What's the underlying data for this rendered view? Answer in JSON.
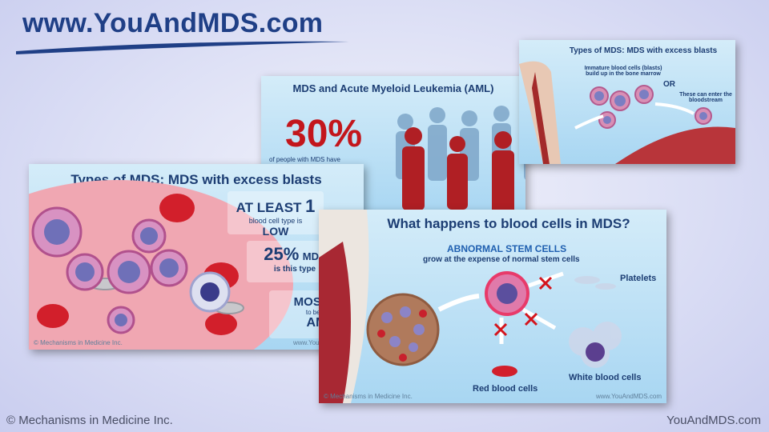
{
  "header": {
    "site_title": "www.YouAndMDS.com"
  },
  "footer": {
    "copyright": "© Mechanisms in Medicine Inc.",
    "site": "YouAndMDS.com"
  },
  "slide_aml": {
    "title": "MDS and Acute Myeloid Leukemia (AML)",
    "percent": "30%",
    "caption": "of people with MDS have"
  },
  "slide_blasts_top": {
    "title": "Types of MDS: MDS with excess blasts",
    "label_marrow": "Immature blood cells (blasts) build up in the bone marrow",
    "or": "OR",
    "label_blood": "These can enter the bloodstream"
  },
  "slide_blasts_left": {
    "title": "Types of MDS: MDS with excess blasts",
    "box1_big": "AT LEAST",
    "box1_num": "1",
    "box1_mid": "blood cell type is",
    "box1_low": "LOW",
    "box2_pct": "25%",
    "box2_word": "MDS",
    "box2_sub": "is this type",
    "box3_big": "MOST L",
    "box3_sub": "to beco",
    "box3_aml": "AM",
    "watermark_left": "© Mechanisms in Medicine Inc.",
    "watermark_right": "www.You"
  },
  "slide_cells": {
    "title": "What happens to blood cells in MDS?",
    "subtitle_strong": "ABNORMAL STEM CELLS",
    "subtitle": "grow at the expense of normal stem cells",
    "label_platelets": "Platelets",
    "label_red": "Red blood cells",
    "label_white": "White blood cells",
    "watermark_left": "© Mechanisms in Medicine Inc.",
    "watermark_right": "www.YouAndMDS.com"
  },
  "colors": {
    "brand_navy": "#1f3f86",
    "accent_red": "#c3161c"
  }
}
